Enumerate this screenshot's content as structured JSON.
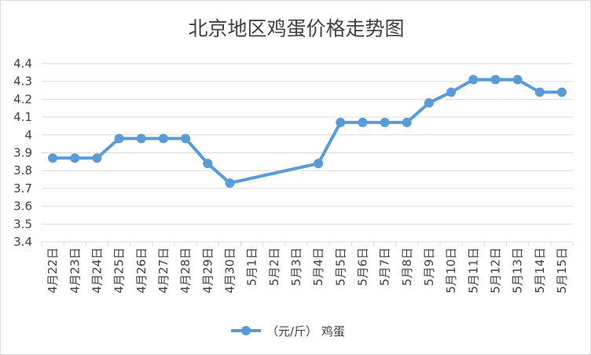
{
  "chart_data": {
    "type": "line",
    "title": "北京地区鸡蛋价格走势图",
    "categories": [
      "4月22日",
      "4月23日",
      "4月24日",
      "4月25日",
      "4月26日",
      "4月27日",
      "4月28日",
      "4月29日",
      "4月30日",
      "5月1日",
      "5月2日",
      "5月3日",
      "5月4日",
      "5月5日",
      "5月6日",
      "5月7日",
      "5月8日",
      "5月9日",
      "5月10日",
      "5月11日",
      "5月12日",
      "5月13日",
      "5月14日",
      "5月15日"
    ],
    "series": [
      {
        "name": "（元/斤） 鸡蛋",
        "values": [
          3.87,
          3.87,
          3.87,
          3.98,
          3.98,
          3.98,
          3.98,
          3.84,
          3.73,
          null,
          null,
          null,
          3.84,
          4.07,
          4.07,
          4.07,
          4.07,
          4.18,
          4.24,
          4.31,
          4.31,
          4.31,
          4.24,
          4.24
        ]
      }
    ],
    "y_ticks": [
      "3.4",
      "3.5",
      "3.6",
      "3.7",
      "3.8",
      "3.9",
      "4",
      "4.1",
      "4.2",
      "4.3",
      "4.4"
    ],
    "ylim": [
      3.4,
      4.4
    ],
    "grid": true,
    "legend_position": "bottom",
    "colors": {
      "series": "#5b9bd5",
      "grid": "#d9d9d9",
      "text": "#404040"
    }
  }
}
